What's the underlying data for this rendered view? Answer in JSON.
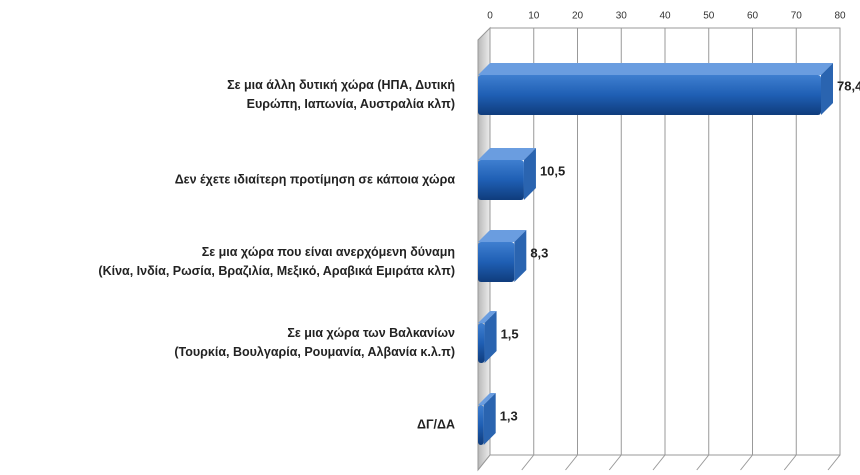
{
  "chart_data": {
    "type": "bar",
    "orientation": "horizontal",
    "categories": [
      "Σε μια άλλη δυτική χώρα (ΗΠΑ, Δυτική\nΕυρώπη, Ιαπωνία, Αυστραλία κλπ)",
      "Δεν έχετε ιδιαίτερη προτίμηση σε κάποια χώρα",
      "Σε μια χώρα που είναι ανερχόμενη δύναμη\n(Κίνα, Ινδία, Ρωσία, Βραζιλία, Μεξικό, Αραβικά Εμιράτα κλπ)",
      "Σε μια χώρα των Βαλκανίων\n(Τουρκία, Βουλγαρία, Ρουμανία, Αλβανία κ.λ.π)",
      "ΔΓ/ΔΑ"
    ],
    "values": [
      78.4,
      10.5,
      8.3,
      1.5,
      1.3
    ],
    "value_labels": [
      "78,4",
      "10,5",
      "8,3",
      "1,5",
      "1,3"
    ],
    "color": "#1f5fb4",
    "xlim": [
      0,
      80
    ],
    "xticks": [
      0,
      10,
      20,
      30,
      40,
      50,
      60,
      70,
      80
    ],
    "grid": true
  }
}
